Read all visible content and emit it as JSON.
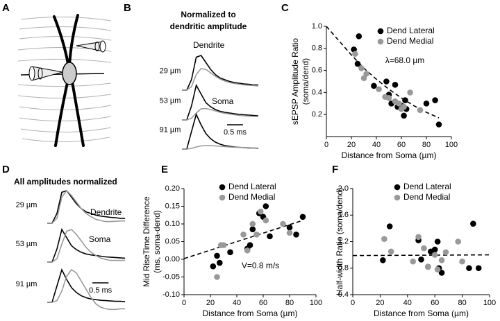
{
  "chart_data": [
    {
      "type": "diagram",
      "panel": "A"
    },
    {
      "type": "traces",
      "panel": "B",
      "title": [
        "Normalized to",
        "dendritic amplitude"
      ],
      "x": [
        0,
        0.15,
        0.3,
        0.45,
        0.6,
        0.75,
        0.9,
        1.05,
        1.2,
        1.35,
        1.5,
        1.65,
        1.8,
        1.95,
        2.1,
        2.25,
        2.4
      ],
      "groups": [
        "29 µm",
        "53 µm",
        "91 µm"
      ],
      "series": [
        {
          "name": "Dendrite",
          "color": "#000000",
          "values": [
            [
              0,
              0,
              0.3,
              0.95,
              1,
              0.8,
              0.6,
              0.45,
              0.35,
              0.3,
              0.25,
              0.22,
              0.2,
              0.18,
              0.17,
              0.15,
              0.15
            ],
            [
              0,
              0,
              0.4,
              1,
              0.75,
              0.5,
              0.38,
              0.3,
              0.25,
              0.22,
              0.2,
              0.18,
              0.16,
              0.15,
              0.14,
              0.13,
              0.12
            ],
            [
              0,
              0,
              0.5,
              1,
              0.7,
              0.45,
              0.3,
              0.2,
              0.14,
              0.1,
              0.08,
              0.06,
              0.05,
              0.04,
              0.03,
              0.03,
              0.02
            ]
          ]
        },
        {
          "name": "Soma",
          "color": "#999999",
          "values": [
            [
              0,
              0,
              0.1,
              0.45,
              0.62,
              0.6,
              0.5,
              0.4,
              0.32,
              0.26,
              0.22,
              0.19,
              0.17,
              0.15,
              0.14,
              0.13,
              0.12
            ],
            [
              0,
              0,
              0.05,
              0.2,
              0.32,
              0.33,
              0.3,
              0.26,
              0.22,
              0.19,
              0.17,
              0.15,
              0.13,
              0.12,
              0.11,
              0.1,
              0.1
            ],
            [
              0,
              0,
              0.02,
              0.06,
              0.09,
              0.1,
              0.1,
              0.09,
              0.08,
              0.07,
              0.06,
              0.05,
              0.05,
              0.04,
              0.04,
              0.03,
              0.03
            ]
          ]
        }
      ],
      "scalebar": {
        "value": 0.5,
        "label": "0.5 ms"
      }
    },
    {
      "type": "scatter",
      "panel": "C",
      "xlabel": "Distance from Soma (µm)",
      "ylabel": [
        "sEPSP Amplitude Ratio",
        "(soma/dend)"
      ],
      "xlim": [
        0,
        100
      ],
      "xticks": [
        0,
        20,
        40,
        60,
        80,
        100
      ],
      "ylim": [
        0,
        1
      ],
      "yticks": [
        0.2,
        0.4,
        0.6,
        0.8,
        {
          "value": 1,
          "label": "1.0"
        }
      ],
      "series": [
        {
          "name": "Dend Lateral",
          "color": "#000000",
          "x": [
            22,
            25,
            26,
            38,
            48,
            50,
            52,
            55,
            57,
            60,
            62,
            63,
            64,
            80,
            87,
            90
          ],
          "values": [
            0.79,
            0.66,
            0.91,
            0.46,
            0.5,
            0.38,
            0.3,
            0.47,
            0.27,
            0.28,
            0.19,
            0.33,
            0.25,
            0.3,
            0.33,
            0.11
          ]
        },
        {
          "name": "Dend Medial",
          "color": "#999999",
          "x": [
            23,
            28,
            30,
            32,
            42,
            47,
            50,
            55,
            58,
            60,
            62,
            67,
            75
          ],
          "values": [
            0.75,
            0.62,
            0.53,
            0.57,
            0.43,
            0.36,
            0.35,
            0.32,
            0.3,
            0.25,
            0.27,
            0.4,
            0.24
          ]
        }
      ],
      "fit": {
        "x": [
          0,
          10,
          20,
          30,
          40,
          50,
          60,
          70,
          80,
          90
        ],
        "values": [
          1,
          0.87,
          0.74,
          0.62,
          0.52,
          0.43,
          0.35,
          0.28,
          0.22,
          0.17
        ]
      },
      "annotation": "λ=68.0 µm"
    },
    {
      "type": "traces",
      "panel": "D",
      "title": "All amplitudes normalized",
      "x": [
        0,
        0.15,
        0.3,
        0.45,
        0.6,
        0.75,
        0.9,
        1.05,
        1.2,
        1.35,
        1.5,
        1.65,
        1.8,
        1.95,
        2.1,
        2.25,
        2.4
      ],
      "groups": [
        "29 µm",
        "53 µm",
        "91 µm"
      ],
      "series": [
        {
          "name": "Dendrite",
          "color": "#000000",
          "values": [
            [
              0,
              0,
              0.3,
              0.95,
              1,
              0.8,
              0.6,
              0.45,
              0.35,
              0.3,
              0.25,
              0.22,
              0.2,
              0.18,
              0.17,
              0.15,
              0.15
            ],
            [
              0,
              0,
              0.4,
              1,
              0.75,
              0.5,
              0.38,
              0.3,
              0.25,
              0.22,
              0.2,
              0.18,
              0.16,
              0.15,
              0.14,
              0.13,
              0.12
            ],
            [
              0,
              0,
              0.5,
              1,
              0.7,
              0.45,
              0.3,
              0.2,
              0.14,
              0.1,
              0.08,
              0.06,
              0.05,
              0.04,
              0.03,
              0.03,
              0.02
            ]
          ]
        },
        {
          "name": "Soma",
          "color": "#999999",
          "values": [
            [
              0,
              0,
              0.15,
              0.8,
              1,
              0.85,
              0.65,
              0.45,
              0.3,
              0.2,
              0.12,
              0.08,
              0.05,
              0.05,
              0.06,
              0.07,
              0.07
            ],
            [
              0,
              0,
              0.1,
              0.55,
              0.95,
              1,
              0.85,
              0.65,
              0.45,
              0.3,
              0.2,
              0.12,
              0.08,
              0.05,
              0.05,
              0.05,
              0.05
            ],
            [
              0,
              0,
              0.05,
              0.35,
              0.8,
              1,
              0.9,
              0.65,
              0.4,
              0.15,
              -0.05,
              -0.15,
              -0.2,
              -0.22,
              -0.22,
              -0.2,
              -0.2
            ]
          ]
        }
      ],
      "scalebar": {
        "value": 0.5,
        "label": "0.5 ms"
      }
    },
    {
      "type": "scatter",
      "panel": "E",
      "xlabel": "Distance from Soma (µm)",
      "ylabel": [
        "Mid RiseTime Difference",
        "(ms, soma-dend)"
      ],
      "xlim": [
        0,
        100
      ],
      "xticks": [
        0,
        20,
        40,
        60,
        80,
        100
      ],
      "ylim": [
        -0.1,
        0.2
      ],
      "yticks": [
        {
          "value": -0.1,
          "label": "-0.10"
        },
        {
          "value": -0.05,
          "label": "-0.05"
        },
        {
          "value": 0,
          "label": "0.00"
        },
        {
          "value": 0.05,
          "label": "0.05"
        },
        {
          "value": 0.1,
          "label": "0.10"
        },
        {
          "value": 0.15,
          "label": "0.15"
        },
        {
          "value": 0.2,
          "label": "0.20"
        }
      ],
      "series": [
        {
          "name": "Dend Lateral",
          "color": "#000000",
          "x": [
            22,
            25,
            27,
            35,
            48,
            50,
            52,
            57,
            60,
            62,
            65,
            80,
            85,
            90
          ],
          "values": [
            -0.02,
            0.01,
            -0.01,
            0.02,
            0.03,
            0.04,
            0.085,
            0.13,
            0.12,
            0.15,
            0.065,
            0.09,
            0.07,
            0.12
          ]
        },
        {
          "name": "Dend Medial",
          "color": "#999999",
          "x": [
            25,
            28,
            30,
            45,
            48,
            52,
            55,
            58,
            62,
            75,
            80
          ],
          "values": [
            -0.05,
            0.04,
            0.04,
            0.07,
            0.025,
            0.1,
            0.07,
            0.135,
            0.11,
            0.1,
            0.075
          ]
        }
      ],
      "fit": {
        "x": [
          0,
          90
        ],
        "values": [
          0.002,
          0.11
        ]
      },
      "annotation": "V=0.8 m/s"
    },
    {
      "type": "scatter",
      "panel": "F",
      "xlabel": "Distance from Soma (µm)",
      "ylabel": [
        "Half-width Ratio (soma/dend)"
      ],
      "xlim": [
        0,
        100
      ],
      "xticks": [
        0,
        20,
        40,
        60,
        80,
        100
      ],
      "ylim": [
        0.4,
        2
      ],
      "yticks": [
        0.4,
        0.8,
        1.2,
        1.6,
        {
          "value": 2,
          "label": "2.0"
        }
      ],
      "series": [
        {
          "name": "Dend Lateral",
          "color": "#000000",
          "x": [
            22,
            27,
            48,
            50,
            55,
            57,
            60,
            62,
            63,
            65,
            85,
            88,
            92
          ],
          "values": [
            0.92,
            1.43,
            1.22,
            0.93,
            0.82,
            1.05,
            1.08,
            1.2,
            0.8,
            0.73,
            0.8,
            1.47,
            0.8
          ]
        },
        {
          "name": "Dend Medial",
          "color": "#999999",
          "x": [
            23,
            28,
            44,
            48,
            52,
            55,
            60,
            62,
            65,
            68,
            77,
            80
          ],
          "values": [
            1.24,
            1.05,
            0.9,
            1.27,
            1.1,
            0.82,
            1.0,
            0.78,
            0.92,
            1.04,
            1.2,
            0.9
          ]
        }
      ],
      "fit": {
        "x": [
          0,
          100
        ],
        "values": [
          0.99,
          1.0
        ]
      }
    }
  ]
}
